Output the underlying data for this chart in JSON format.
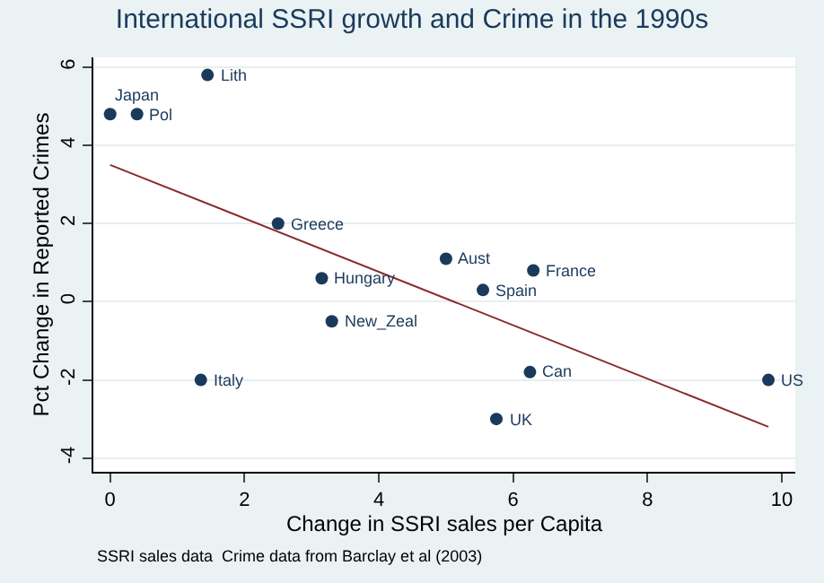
{
  "chart_data": {
    "type": "scatter",
    "title": "International SSRI growth and Crime in the 1990s",
    "xlabel": "Change in SSRI sales per Capita",
    "ylabel": "Pct Change in Reported Crimes",
    "annotations": [
      {
        "text": "Japan",
        "x": 0,
        "y": 4.8
      },
      {
        "text": "Pol",
        "x": 0.4,
        "y": 4.8
      },
      {
        "text": "Lith",
        "x": 1.45,
        "y": 5.8
      },
      {
        "text": "Greece",
        "x": 2.5,
        "y": 2.0
      },
      {
        "text": "Hungary",
        "x": 3.15,
        "y": 0.6
      },
      {
        "text": "New_Zeal",
        "x": 3.3,
        "y": -0.5
      },
      {
        "text": "Italy",
        "x": 1.35,
        "y": -2.0
      },
      {
        "text": "Aust",
        "x": 5.0,
        "y": 1.1
      },
      {
        "text": "France",
        "x": 6.3,
        "y": 0.8
      },
      {
        "text": "Spain",
        "x": 5.55,
        "y": 0.3
      },
      {
        "text": "Can",
        "x": 6.25,
        "y": -1.8
      },
      {
        "text": "UK",
        "x": 5.75,
        "y": -3.0
      },
      {
        "text": "US",
        "x": 9.8,
        "y": -2.0
      },
      "SSRI sales data  Crime data from Barclay et al (2003)"
    ],
    "series": [
      {
        "color": "#1a3a5c",
        "marker": "circle",
        "x": [
          0,
          0.4,
          1.45,
          2.5,
          3.15,
          3.3,
          1.35,
          5.0,
          6.3,
          5.55,
          6.25,
          5.75,
          9.8
        ],
        "values": [
          4.8,
          4.8,
          5.8,
          2.0,
          0.6,
          -0.5,
          -2.0,
          1.1,
          0.8,
          0.3,
          -1.8,
          -3.0,
          -2.0
        ]
      },
      {
        "type": "line",
        "color": "#8b2a2a",
        "marker": "none",
        "x": [
          0,
          9.8
        ],
        "values": [
          3.5,
          -3.2
        ]
      }
    ],
    "xlim": [
      -0.25,
      10.2
    ],
    "ylim": [
      -4.35,
      6.25
    ],
    "xticks": [
      0,
      2,
      4,
      6,
      8,
      10
    ],
    "yticks": [
      -4,
      -2,
      0,
      2,
      4,
      6
    ],
    "grid": "y"
  }
}
